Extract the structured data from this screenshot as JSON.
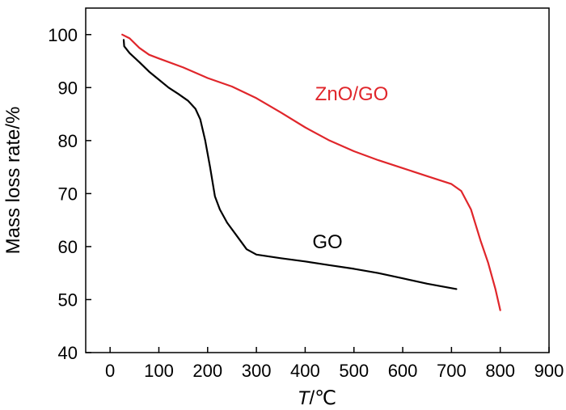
{
  "chart_data": {
    "type": "line",
    "title": "",
    "xlabel": {
      "italic": "T",
      "rest": "/℃"
    },
    "ylabel": "Mass loss rate/%",
    "xlim": [
      -50,
      900
    ],
    "ylim": [
      40,
      105
    ],
    "xticks": [
      0,
      100,
      200,
      300,
      400,
      500,
      600,
      700,
      800,
      900
    ],
    "yticks": [
      40,
      50,
      60,
      70,
      80,
      90,
      100
    ],
    "grid": false,
    "series": [
      {
        "name": "ZnO/GO",
        "color": "#e0262b",
        "label": "ZnO/GO",
        "points": [
          [
            25,
            100
          ],
          [
            40,
            99.3
          ],
          [
            60,
            97.5
          ],
          [
            80,
            96.2
          ],
          [
            100,
            95.5
          ],
          [
            150,
            93.8
          ],
          [
            200,
            91.8
          ],
          [
            250,
            90.2
          ],
          [
            300,
            88
          ],
          [
            350,
            85.3
          ],
          [
            400,
            82.5
          ],
          [
            450,
            80
          ],
          [
            500,
            78
          ],
          [
            550,
            76.3
          ],
          [
            600,
            74.8
          ],
          [
            650,
            73.3
          ],
          [
            700,
            71.8
          ],
          [
            720,
            70.5
          ],
          [
            740,
            67
          ],
          [
            760,
            61
          ],
          [
            775,
            57
          ],
          [
            790,
            52
          ],
          [
            800,
            48
          ]
        ]
      },
      {
        "name": "GO",
        "color": "#000000",
        "label": "GO",
        "points": [
          [
            28,
            99
          ],
          [
            29,
            97.8
          ],
          [
            40,
            96.5
          ],
          [
            60,
            94.8
          ],
          [
            80,
            93
          ],
          [
            100,
            91.5
          ],
          [
            120,
            90
          ],
          [
            140,
            88.8
          ],
          [
            160,
            87.5
          ],
          [
            175,
            86
          ],
          [
            185,
            84
          ],
          [
            195,
            80
          ],
          [
            205,
            75
          ],
          [
            215,
            69.5
          ],
          [
            225,
            67
          ],
          [
            240,
            64.5
          ],
          [
            260,
            62
          ],
          [
            280,
            59.5
          ],
          [
            300,
            58.5
          ],
          [
            350,
            57.8
          ],
          [
            400,
            57.2
          ],
          [
            450,
            56.5
          ],
          [
            500,
            55.8
          ],
          [
            550,
            55
          ],
          [
            600,
            54
          ],
          [
            650,
            53
          ],
          [
            710,
            52
          ]
        ]
      }
    ]
  }
}
